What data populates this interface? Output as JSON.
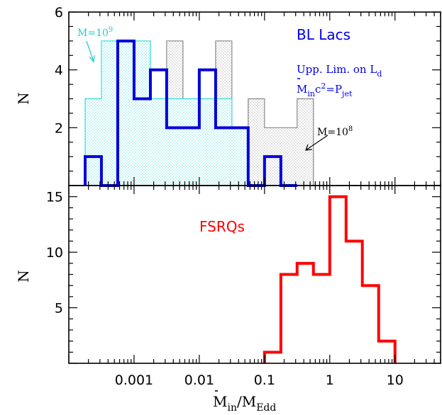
{
  "chart_data": [
    {
      "type": "histogram",
      "panel": "top",
      "xscale": "log",
      "xlim": [
        0.0001,
        50
      ],
      "ylim": [
        0,
        6
      ],
      "ylabel": "N",
      "yticks": [
        "2",
        "4",
        "6"
      ],
      "title": "BL Lacs",
      "annotations": {
        "subtitle1": "Upp. Lim. on L",
        "subtitle1_sub": "d",
        "subtitle2_pre": "M",
        "subtitle2_sub1": "in",
        "subtitle2_mid": "c",
        "subtitle2_sup": "2",
        "subtitle2_eq": "=P",
        "subtitle2_sub2": "jet",
        "m9_label": "M=10",
        "m9_exp": "9",
        "m8_label": "M=10",
        "m8_exp": "8"
      },
      "colors": {
        "blue": "#0000dd",
        "cyan": "#33dddd",
        "gray": "#888888",
        "title": "#0000ee"
      },
      "series": [
        {
          "id": "m8",
          "style": "gray-hatched",
          "edges": [
            0.001,
            0.00178,
            0.00316,
            0.00562,
            0.01,
            0.0178,
            0.0316,
            0.0562,
            0.1,
            0.178,
            0.316,
            0.562
          ],
          "values": [
            1,
            1,
            5,
            2,
            2,
            5,
            2,
            3,
            2,
            2,
            3
          ]
        },
        {
          "id": "m9",
          "style": "cyan-hatched",
          "edges": [
            0.000178,
            0.000316,
            0.000562,
            0.001,
            0.00178,
            0.00316,
            0.00562,
            0.01,
            0.0178,
            0.0316,
            0.0562
          ],
          "values": [
            3,
            5,
            5,
            5,
            3,
            3,
            3,
            3,
            3,
            2
          ]
        },
        {
          "id": "total",
          "style": "blue-thick",
          "edges": [
            0.000178,
            0.000316,
            0.000562,
            0.001,
            0.00178,
            0.00316,
            0.00562,
            0.01,
            0.0178,
            0.0316,
            0.0562,
            0.1,
            0.178,
            0.316
          ],
          "values": [
            1,
            0,
            5,
            3,
            4,
            2,
            2,
            4,
            2,
            2,
            0,
            1,
            0
          ]
        }
      ]
    },
    {
      "type": "histogram",
      "panel": "bottom",
      "xscale": "log",
      "xlim": [
        0.0001,
        50
      ],
      "ylim": [
        0,
        16
      ],
      "ylabel": "N",
      "yticks": [
        "5",
        "10",
        "15"
      ],
      "xticks": [
        "0.001",
        "0.01",
        "0.1",
        "1",
        "10"
      ],
      "xlabel_main": "M",
      "xlabel_sub1": "in",
      "xlabel_slash": "/M",
      "xlabel_sub2": "Edd",
      "title": "FSRQs",
      "colors": {
        "red": "#ff0000"
      },
      "series": [
        {
          "id": "fsrq",
          "style": "red-thick",
          "edges": [
            0.1,
            0.178,
            0.316,
            0.562,
            1,
            1.78,
            3.16,
            5.62,
            10
          ],
          "values": [
            1,
            8,
            9,
            8,
            15,
            11,
            7,
            2
          ]
        }
      ]
    }
  ]
}
